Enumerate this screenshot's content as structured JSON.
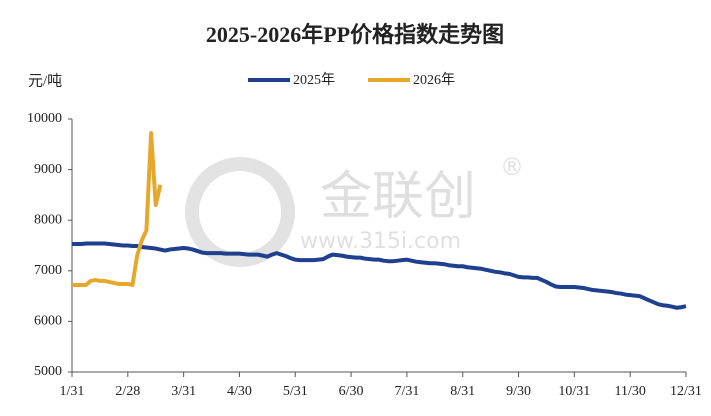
{
  "chart_data": {
    "type": "line",
    "title": "2025-2026年PP价格指数走势图",
    "y_unit": "元/吨",
    "watermark_name": "金联创",
    "watermark_mark": "®",
    "watermark_url": "www.315i.com",
    "categories": [
      "1/31",
      null,
      null,
      null,
      null,
      null,
      null,
      null,
      null,
      null,
      null,
      null,
      "2/28",
      null,
      null,
      null,
      null,
      null,
      null,
      null,
      null,
      null,
      null,
      null,
      "3/31",
      null,
      null,
      null,
      null,
      null,
      null,
      null,
      null,
      null,
      null,
      null,
      "4/30",
      null,
      null,
      null,
      null,
      null,
      null,
      null,
      null,
      null,
      null,
      null,
      "5/31",
      null,
      null,
      null,
      null,
      null,
      null,
      null,
      null,
      null,
      null,
      null,
      "6/30",
      null,
      null,
      null,
      null,
      null,
      null,
      null,
      null,
      null,
      null,
      null,
      "7/31",
      null,
      null,
      null,
      null,
      null,
      null,
      null,
      null,
      null,
      null,
      null,
      "8/31",
      null,
      null,
      null,
      null,
      null,
      null,
      null,
      null,
      null,
      null,
      null,
      "9/30",
      null,
      null,
      null,
      null,
      null,
      null,
      null,
      null,
      null,
      null,
      null,
      "10/31",
      null,
      null,
      null,
      null,
      null,
      null,
      null,
      null,
      null,
      null,
      null,
      "11/30",
      null,
      null,
      null,
      null,
      null,
      null,
      null,
      null,
      null,
      null,
      null,
      "12/31"
    ],
    "series": [
      {
        "name": "2025年",
        "color": "#1f3f8f",
        "values": [
          7530,
          7530,
          7530,
          7540,
          7540,
          7540,
          7540,
          7540,
          7530,
          7520,
          7510,
          7500,
          7500,
          7490,
          7490,
          7470,
          7460,
          7450,
          7440,
          7420,
          7400,
          7420,
          7430,
          7440,
          7450,
          7440,
          7420,
          7390,
          7360,
          7350,
          7350,
          7350,
          7350,
          7340,
          7340,
          7340,
          7340,
          7330,
          7320,
          7320,
          7320,
          7300,
          7280,
          7320,
          7350,
          7320,
          7290,
          7250,
          7220,
          7210,
          7210,
          7210,
          7210,
          7220,
          7230,
          7280,
          7320,
          7310,
          7300,
          7280,
          7270,
          7260,
          7260,
          7240,
          7230,
          7220,
          7220,
          7200,
          7190,
          7190,
          7200,
          7210,
          7220,
          7200,
          7180,
          7170,
          7160,
          7150,
          7150,
          7140,
          7130,
          7110,
          7100,
          7090,
          7090,
          7070,
          7060,
          7050,
          7040,
          7020,
          7000,
          6980,
          6970,
          6950,
          6940,
          6910,
          6880,
          6870,
          6870,
          6860,
          6860,
          6820,
          6780,
          6730,
          6690,
          6680,
          6680,
          6680,
          6680,
          6670,
          6660,
          6640,
          6620,
          6610,
          6600,
          6590,
          6580,
          6560,
          6550,
          6530,
          6520,
          6510,
          6500,
          6460,
          6420,
          6380,
          6340,
          6320,
          6310,
          6290,
          6270,
          6280,
          6300
        ]
      },
      {
        "name": "2026年",
        "color": "#e6a82c",
        "values": [
          6720,
          6720,
          6720,
          6720,
          6800,
          6820,
          6800,
          6800,
          6780,
          6760,
          6740,
          6740,
          6740,
          6720,
          7300,
          7600,
          7800,
          9720,
          8300,
          8700,
          null,
          null,
          null,
          null,
          null,
          null,
          null,
          null,
          null,
          null,
          null,
          null,
          null,
          null,
          null,
          null,
          null,
          null,
          null,
          null,
          null,
          null,
          null,
          null,
          null,
          null,
          null,
          null,
          null,
          null,
          null,
          null,
          null,
          null,
          null,
          null,
          null,
          null,
          null,
          null,
          null,
          null,
          null,
          null,
          null,
          null,
          null,
          null,
          null,
          null,
          null,
          null,
          null,
          null,
          null,
          null,
          null,
          null,
          null,
          null,
          null,
          null,
          null,
          null,
          null,
          null,
          null,
          null,
          null,
          null,
          null,
          null,
          null,
          null,
          null,
          null,
          null,
          null,
          null,
          null,
          null,
          null,
          null,
          null,
          null,
          null,
          null,
          null,
          null,
          null,
          null,
          null,
          null,
          null,
          null,
          null,
          null,
          null,
          null,
          null,
          null,
          null,
          null,
          null,
          null,
          null,
          null,
          null,
          null,
          null,
          null,
          null,
          null
        ]
      }
    ],
    "ylim": [
      5000,
      10000
    ],
    "yticks": [
      5000,
      6000,
      7000,
      8000,
      9000,
      10000
    ],
    "grid": false
  }
}
